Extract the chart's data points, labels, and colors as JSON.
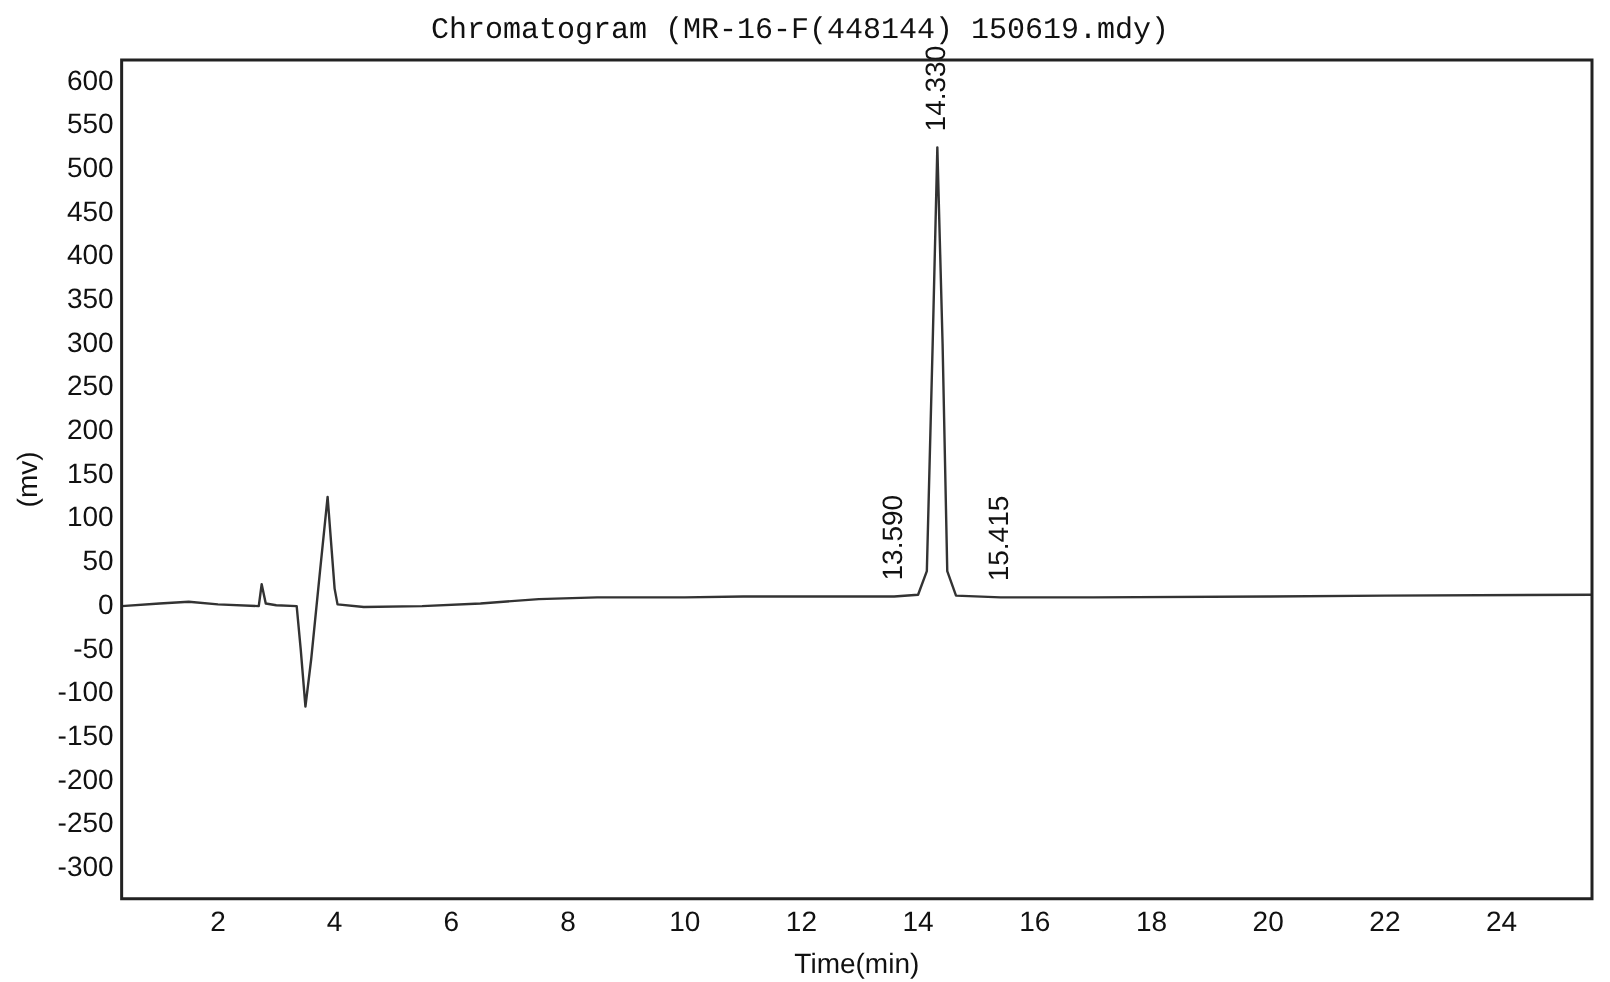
{
  "chart_data": {
    "type": "line",
    "title": "Chromatogram (MR-16-F(448144) 150619.mdy)",
    "xlabel": "Time(min)",
    "ylabel": "(mv)",
    "x": [
      0.35,
      1,
      1.5,
      2,
      2.7,
      2.75,
      2.82,
      3.0,
      3.35,
      3.42,
      3.5,
      3.6,
      3.75,
      3.88,
      4.0,
      4.05,
      4.5,
      5.5,
      6.5,
      7.5,
      8.5,
      10,
      11,
      12,
      13,
      13.59,
      14.0,
      14.15,
      14.25,
      14.33,
      14.42,
      14.5,
      14.65,
      15.415,
      17,
      20,
      22,
      25.55
    ],
    "series": [
      {
        "color": "#333333",
        "values": [
          0,
          3,
          5,
          2,
          0,
          25,
          3,
          1,
          0,
          -50,
          -115,
          -60,
          40,
          125,
          20,
          2,
          -1,
          0,
          3,
          8,
          10,
          10,
          11,
          11,
          11,
          11,
          13,
          40,
          300,
          525,
          300,
          40,
          12,
          10,
          10,
          11,
          12,
          13
        ]
      }
    ],
    "xlim": [
      0.35,
      25.55
    ],
    "ylim": [
      -335,
      625
    ],
    "xticks": [
      2,
      4,
      6,
      8,
      10,
      12,
      14,
      16,
      18,
      20,
      22,
      24
    ],
    "yticks": [
      -300,
      -250,
      -200,
      -150,
      -100,
      -50,
      0,
      50,
      100,
      150,
      200,
      250,
      300,
      350,
      400,
      450,
      500,
      550,
      600
    ],
    "annotations": [
      {
        "text": "13.590",
        "x": 13.59,
        "y": 11
      },
      {
        "text": "14.330",
        "x": 14.33,
        "y": 525
      },
      {
        "text": "15.415",
        "x": 15.415,
        "y": 10
      }
    ],
    "grid": false,
    "legend": false,
    "marker": "none",
    "line_style": "solid"
  }
}
